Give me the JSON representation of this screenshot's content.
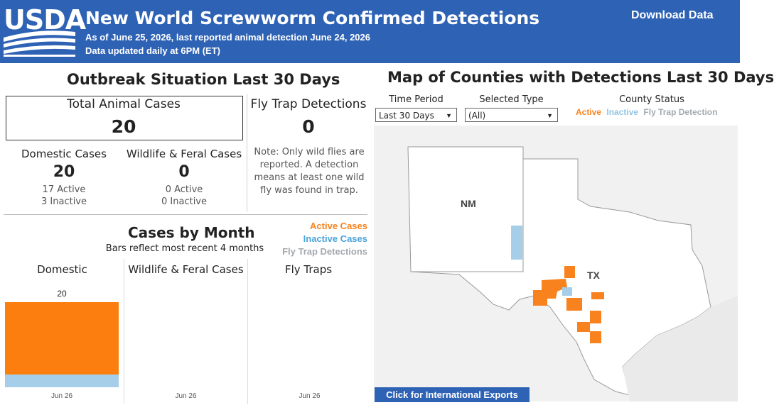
{
  "header": {
    "logo_text": "USDA",
    "title": "New World Screwworm Confirmed Detections",
    "subtitle_line1": "As of June 25, 2026, last reported animal detection June 24, 2026",
    "subtitle_line2": "Data updated daily at 6PM (ET)",
    "download_label": "Download Data",
    "background_color": "#2E62B5"
  },
  "outbreak": {
    "title": "Outbreak Situation Last 30 Days",
    "total_label": "Total Animal Cases",
    "total_value": "20",
    "fly_trap_label": "Fly Trap Detections",
    "fly_trap_value": "0",
    "fly_trap_note": "Note: Only wild flies are reported. A detection means at least one wild fly was found in trap.",
    "domestic": {
      "label": "Domestic Cases",
      "value": "20",
      "active": "17 Active",
      "inactive": "3 Inactive"
    },
    "wildlife": {
      "label": "Wildlife & Feral Cases",
      "value": "0",
      "active": "0 Active",
      "inactive": "0 Inactive"
    }
  },
  "by_month": {
    "title": "Cases by Month",
    "subtitle": "Bars reflect most recent 4 months",
    "legend": [
      {
        "label": "Active Cases",
        "color": "#F8821E"
      },
      {
        "label": "Inactive Cases",
        "color": "#4BA3D9"
      },
      {
        "label": "Fly Trap Detections",
        "color": "#A3A9AE"
      }
    ],
    "panels": [
      {
        "label": "Domestic",
        "date": "Jun 26",
        "total_label": "20",
        "active": 17,
        "inactive": 3
      },
      {
        "label": "Wildlife & Feral Cases",
        "date": "Jun 26",
        "active": 0,
        "inactive": 0
      },
      {
        "label": "Fly Traps",
        "date": "Jun 26",
        "detections": 0
      }
    ],
    "bar_colors": {
      "active": "#FC7E0F",
      "inactive": "#A6CEE8"
    }
  },
  "map": {
    "title": "Map of Counties with Detections Last 30 Days",
    "time_period_label": "Time Period",
    "time_period_value": "Last 30 Days",
    "selected_type_label": "Selected Type",
    "selected_type_value": "(All)",
    "county_status_label": "County Status",
    "status_active": "Active",
    "status_inactive": "Inactive",
    "status_fly_trap": "Fly Trap Detection",
    "status_colors": {
      "active": "#F8821E",
      "inactive": "#8FC4E3",
      "fly_trap": "#A3A9AE"
    },
    "state_labels": {
      "nm": "NM",
      "tx": "TX"
    },
    "exports_label": "Click for International Exports"
  }
}
